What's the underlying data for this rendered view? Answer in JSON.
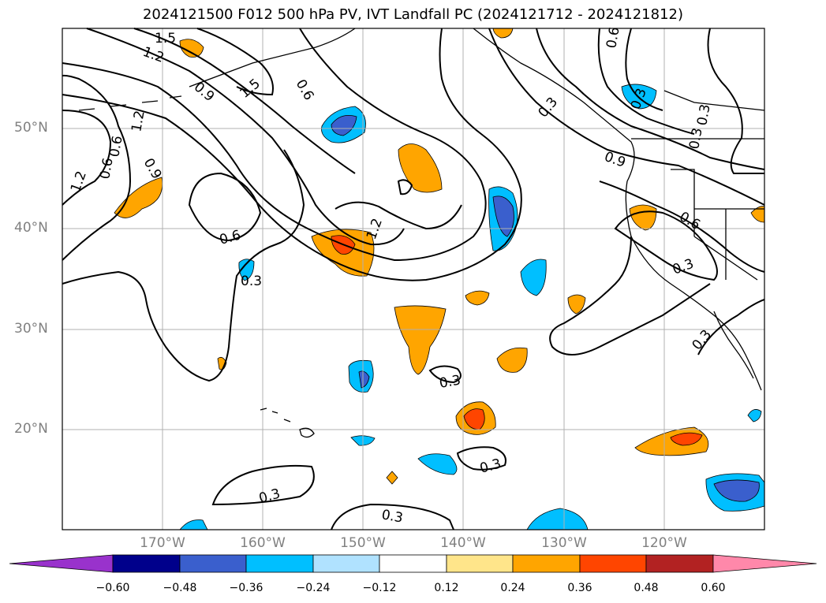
{
  "title": "2024121500 F012 500 hPa PV, IVT Landfall PC (2024121712 - 2024121812)",
  "map": {
    "extent_lon": [
      -180,
      -110
    ],
    "extent_lat": [
      10,
      60
    ],
    "lat_labels": [
      "50°N",
      "40°N",
      "30°N",
      "20°N"
    ],
    "lon_labels": [
      "170°W",
      "160°W",
      "150°W",
      "140°W",
      "130°W",
      "120°W"
    ],
    "contour_labels": [
      "1.5",
      "1.2",
      "0.9",
      "1.5",
      "0.6",
      "0.6",
      "1.2",
      "0.9",
      "0.9",
      "0.6",
      "0.3",
      "0.3",
      "0.3",
      "0.6",
      "0.6",
      "1.2",
      "0.3",
      "0.3",
      "0.3",
      "0.3",
      "0.3",
      "0.3",
      "0.3",
      "0.3",
      "0.6",
      "1.2"
    ]
  },
  "colorbar": {
    "ticks": [
      "−0.60",
      "−0.48",
      "−0.36",
      "−0.24",
      "−0.12",
      "0.12",
      "0.24",
      "0.36",
      "0.48",
      "0.60"
    ],
    "colors": [
      "#9932cc",
      "#00008b",
      "#3a5fcd",
      "#00bfff",
      "#b0e2ff",
      "#ffffff",
      "#ffe58a",
      "#ffa500",
      "#ff4500",
      "#b22222",
      "#ff88aa"
    ]
  }
}
